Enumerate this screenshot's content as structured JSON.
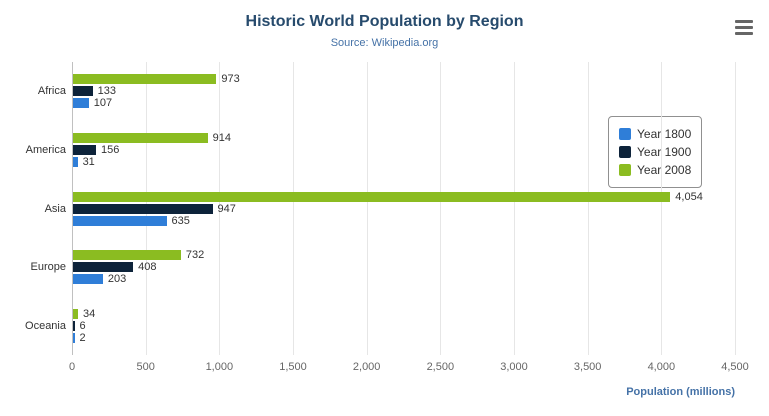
{
  "title": "Historic World Population by Region",
  "subtitle": "Source: Wikipedia.org",
  "xlabel": "Population (millions)",
  "menu_icon": "hamburger-menu-icon",
  "colors": {
    "title": "#274b6d",
    "subtitle": "#4572a7",
    "xlabel": "#4572a7",
    "tick_label": "#666666",
    "data_label": "#333333",
    "gridline": "#e6e6e6"
  },
  "chart_data": {
    "type": "bar",
    "orientation": "horizontal",
    "categories": [
      "Africa",
      "America",
      "Asia",
      "Europe",
      "Oceania"
    ],
    "series": [
      {
        "name": "Year 1800",
        "color": "#2f7ed8",
        "values": [
          107,
          31,
          635,
          203,
          2
        ]
      },
      {
        "name": "Year 1900",
        "color": "#0d233a",
        "values": [
          133,
          156,
          947,
          408,
          6
        ]
      },
      {
        "name": "Year 2008",
        "color": "#8bbc21",
        "values": [
          973,
          914,
          4054,
          732,
          34
        ]
      }
    ],
    "series_visual_order_top_to_bottom": [
      "Year 2008",
      "Year 1900",
      "Year 1800"
    ],
    "xlim": [
      0,
      4500
    ],
    "xticks": [
      0,
      500,
      1000,
      1500,
      2000,
      2500,
      3000,
      3500,
      4000,
      4500
    ],
    "title": "Historic World Population by Region",
    "subtitle": "Source: Wikipedia.org",
    "xlabel": "Population (millions)",
    "ylabel": "",
    "grid": true,
    "legend_position": "right",
    "data_labels": true
  }
}
